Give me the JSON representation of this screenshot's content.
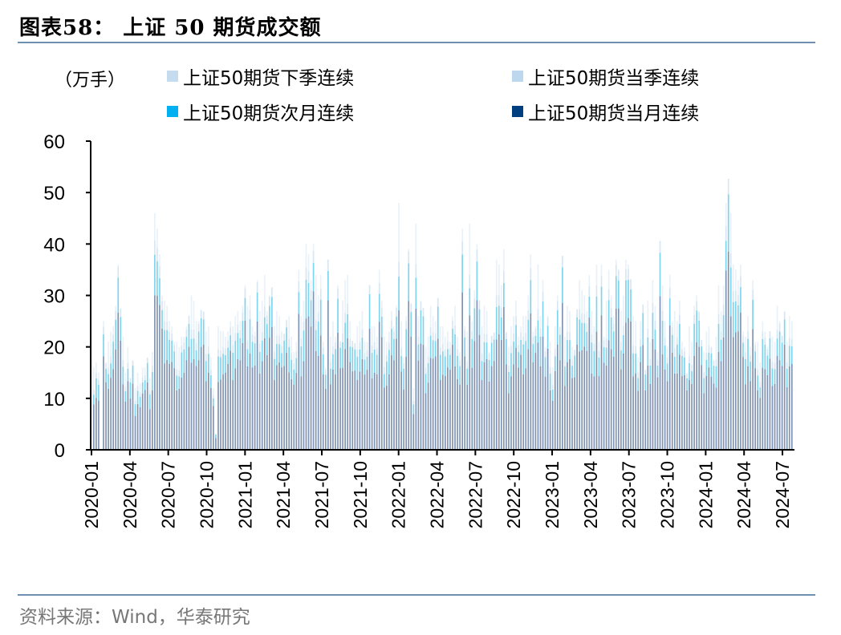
{
  "header": {
    "title": "图表58：  上证 50 期货成交额"
  },
  "footer": {
    "source": "资料来源：Wind，华泰研究"
  },
  "chart_data": {
    "type": "bar",
    "stacked": true,
    "title": "上证 50 期货成交额",
    "ylabel": "（万手）",
    "xlabel": "",
    "ylim": [
      0,
      60
    ],
    "yticks": [
      0,
      10,
      20,
      30,
      40,
      50,
      60
    ],
    "xtick_labels": [
      "2020-01",
      "2020-04",
      "2020-07",
      "2020-10",
      "2021-01",
      "2021-04",
      "2021-07",
      "2021-10",
      "2022-01",
      "2022-04",
      "2022-07",
      "2022-10",
      "2023-01",
      "2023-04",
      "2023-07",
      "2023-10",
      "2024-01",
      "2024-04",
      "2024-07"
    ],
    "grid": false,
    "legend_position": "top",
    "legend": [
      {
        "name": "上证50期货下季连续",
        "color": "#c5dcef"
      },
      {
        "name": "上证50期货当季连续",
        "color": "#bdd7ee"
      },
      {
        "name": "上证50期货次月连续",
        "color": "#00b0f0"
      },
      {
        "name": "上证50期货当月连续",
        "color": "#003f7f"
      }
    ],
    "x_start": "2020-01",
    "x_end": "2024-08",
    "totals_approx": [
      16,
      17,
      15,
      0,
      25,
      17,
      21,
      23,
      24,
      28,
      36,
      27,
      22,
      15,
      20,
      14,
      17,
      12,
      15,
      13,
      16,
      16,
      17,
      14,
      19,
      46,
      43,
      38,
      30,
      29,
      28,
      25,
      24,
      21,
      21,
      20,
      22,
      22,
      24,
      26,
      30,
      29,
      25,
      25,
      27,
      26,
      23,
      24,
      18,
      12,
      3,
      24,
      23,
      23,
      22,
      23,
      25,
      24,
      26,
      27,
      25,
      28,
      32,
      28,
      30,
      24,
      23,
      33,
      27,
      29,
      34,
      27,
      30,
      31,
      24,
      27,
      26,
      23,
      22,
      24,
      26,
      22,
      19,
      21,
      35,
      26,
      29,
      40,
      38,
      33,
      40,
      34,
      30,
      34,
      21,
      16,
      37,
      22,
      25,
      22,
      32,
      21,
      29,
      33,
      34,
      25,
      21,
      20,
      24,
      25,
      27,
      21,
      21,
      30,
      24,
      24,
      22,
      35,
      29,
      22,
      21,
      23,
      27,
      24,
      28,
      48,
      25,
      18,
      26,
      39,
      28,
      12,
      44,
      26,
      29,
      27,
      20,
      22,
      28,
      26,
      25,
      28,
      24,
      24,
      22,
      23,
      21,
      26,
      28,
      22,
      19,
      43,
      24,
      23,
      44,
      25,
      31,
      40,
      29,
      24,
      28,
      27,
      19,
      22,
      22,
      37,
      36,
      32,
      39,
      22,
      20,
      24,
      26,
      29,
      22,
      24,
      26,
      26,
      30,
      38,
      23,
      24,
      36,
      26,
      33,
      20,
      26,
      21,
      16,
      24,
      30,
      24,
      37,
      22,
      28,
      27,
      20,
      19,
      26,
      33,
      31,
      30,
      27,
      34,
      27,
      24,
      36,
      21,
      36,
      22,
      29,
      35,
      30,
      26,
      37,
      35,
      27,
      30,
      37,
      36,
      33,
      26,
      25,
      18,
      25,
      28,
      15,
      29,
      21,
      33,
      28,
      19,
      38,
      32,
      25,
      20,
      34,
      25,
      27,
      25,
      29,
      21,
      20,
      15,
      24,
      21,
      28,
      30,
      27,
      21,
      19,
      23,
      24,
      20,
      17,
      22,
      32,
      27,
      32,
      48,
      50,
      46,
      36,
      35,
      33,
      36,
      23,
      22,
      26,
      20,
      33,
      21,
      21,
      17,
      25,
      23,
      20,
      23,
      22,
      21,
      28,
      25,
      22,
      26,
      21,
      26,
      25
    ],
    "series_note": "Weekly stacked bars; values approximate (万手). Bottom layer 当月 ≈ 60-80% of total, 次月 ≈ 15-25%, 当季/下季 small remainder."
  }
}
